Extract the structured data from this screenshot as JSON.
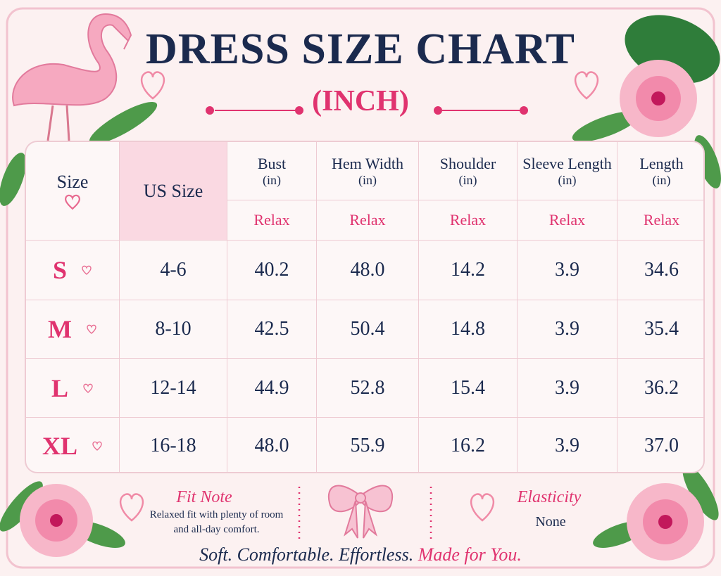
{
  "header": {
    "title": "DRESS SIZE CHART",
    "subtitle": "(INCH)"
  },
  "table": {
    "columns": [
      {
        "label": "Size"
      },
      {
        "label": "US Size"
      },
      {
        "label": "Bust",
        "unit": "(in)",
        "fit": "Relax"
      },
      {
        "label": "Hem Width",
        "unit": "(in)",
        "fit": "Relax"
      },
      {
        "label": "Shoulder",
        "unit": "(in)",
        "fit": "Relax"
      },
      {
        "label": "Sleeve Length",
        "unit": "(in)",
        "fit": "Relax"
      },
      {
        "label": "Length",
        "unit": "(in)",
        "fit": "Relax"
      }
    ],
    "rows": [
      [
        "S",
        "4-6",
        "40.2",
        "48.0",
        "14.2",
        "3.9",
        "34.6"
      ],
      [
        "M",
        "8-10",
        "42.5",
        "50.4",
        "14.8",
        "3.9",
        "35.4"
      ],
      [
        "L",
        "12-14",
        "44.9",
        "52.8",
        "15.4",
        "3.9",
        "36.2"
      ],
      [
        "XL",
        "16-18",
        "48.0",
        "55.9",
        "16.2",
        "3.9",
        "37.0"
      ]
    ]
  },
  "footer": {
    "fit_note": {
      "title": "Fit Note",
      "text": "Relaxed fit with plenty of room and all-day comfort."
    },
    "elasticity": {
      "title": "Elasticity",
      "value": "None"
    },
    "tagline": "Soft. Comfortable. Effortless.",
    "tagline_highlight": "Made for You."
  }
}
